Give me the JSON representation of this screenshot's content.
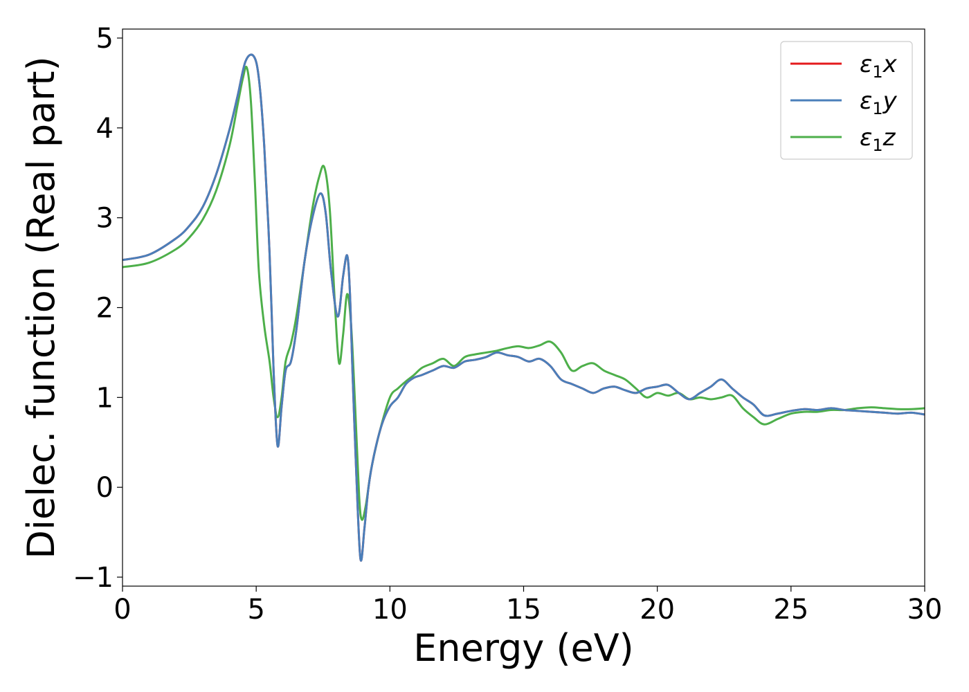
{
  "chart_data": {
    "type": "line",
    "title": "",
    "xlabel": "Energy (eV)",
    "ylabel": "Dielec. function (Real part)",
    "xlim": [
      0,
      30
    ],
    "ylim": [
      -1.1,
      5.1
    ],
    "xticks": [
      0,
      5,
      10,
      15,
      20,
      25,
      30
    ],
    "yticks": [
      -1,
      0,
      1,
      2,
      3,
      4,
      5
    ],
    "grid": false,
    "legend_position": "top-right",
    "series": [
      {
        "name": "ε₁x",
        "name_base": "ε",
        "name_sub": "1",
        "name_suffix": "x",
        "color": "#e41a1c",
        "x": [
          0,
          1,
          2,
          2.5,
          3,
          3.5,
          4,
          4.3,
          4.6,
          4.9,
          5.1,
          5.3,
          5.5,
          5.65,
          5.8,
          5.95,
          6.1,
          6.3,
          6.5,
          6.8,
          7.1,
          7.4,
          7.6,
          7.8,
          8.05,
          8.25,
          8.4,
          8.5,
          8.6,
          8.75,
          8.9,
          9.05,
          9.2,
          9.4,
          9.7,
          10,
          10.3,
          10.6,
          10.9,
          11.2,
          11.6,
          12,
          12.4,
          12.8,
          13.2,
          13.6,
          14,
          14.4,
          14.8,
          15.2,
          15.6,
          16,
          16.4,
          16.8,
          17.2,
          17.6,
          18,
          18.4,
          18.8,
          19.2,
          19.6,
          20,
          20.4,
          20.8,
          21.2,
          21.6,
          22,
          22.4,
          22.8,
          23.2,
          23.6,
          24,
          24.5,
          25,
          25.5,
          26,
          26.5,
          27,
          27.5,
          28,
          28.5,
          29,
          29.5,
          30
        ],
        "y": [
          2.53,
          2.59,
          2.77,
          2.91,
          3.12,
          3.48,
          3.98,
          4.35,
          4.74,
          4.8,
          4.55,
          3.8,
          2.6,
          1.3,
          0.46,
          0.9,
          1.3,
          1.4,
          1.75,
          2.5,
          3.0,
          3.27,
          3.05,
          2.4,
          1.9,
          2.35,
          2.58,
          2.2,
          1.3,
          0.1,
          -0.8,
          -0.45,
          0.0,
          0.35,
          0.7,
          0.9,
          1.0,
          1.15,
          1.22,
          1.25,
          1.3,
          1.35,
          1.33,
          1.4,
          1.42,
          1.45,
          1.5,
          1.47,
          1.45,
          1.4,
          1.43,
          1.35,
          1.2,
          1.15,
          1.1,
          1.05,
          1.1,
          1.12,
          1.08,
          1.05,
          1.1,
          1.12,
          1.14,
          1.05,
          0.98,
          1.05,
          1.12,
          1.2,
          1.1,
          1.0,
          0.92,
          0.8,
          0.82,
          0.85,
          0.87,
          0.86,
          0.88,
          0.86,
          0.85,
          0.84,
          0.83,
          0.82,
          0.83,
          0.81
        ]
      },
      {
        "name": "ε₁y",
        "name_base": "ε",
        "name_sub": "1",
        "name_suffix": "y",
        "color": "#4a7fba",
        "x": [
          0,
          1,
          2,
          2.5,
          3,
          3.5,
          4,
          4.3,
          4.6,
          4.9,
          5.1,
          5.3,
          5.5,
          5.65,
          5.8,
          5.95,
          6.1,
          6.3,
          6.5,
          6.8,
          7.1,
          7.4,
          7.6,
          7.8,
          8.05,
          8.25,
          8.4,
          8.5,
          8.6,
          8.75,
          8.9,
          9.05,
          9.2,
          9.4,
          9.7,
          10,
          10.3,
          10.6,
          10.9,
          11.2,
          11.6,
          12,
          12.4,
          12.8,
          13.2,
          13.6,
          14,
          14.4,
          14.8,
          15.2,
          15.6,
          16,
          16.4,
          16.8,
          17.2,
          17.6,
          18,
          18.4,
          18.8,
          19.2,
          19.6,
          20,
          20.4,
          20.8,
          21.2,
          21.6,
          22,
          22.4,
          22.8,
          23.2,
          23.6,
          24,
          24.5,
          25,
          25.5,
          26,
          26.5,
          27,
          27.5,
          28,
          28.5,
          29,
          29.5,
          30
        ],
        "y": [
          2.53,
          2.59,
          2.77,
          2.91,
          3.12,
          3.48,
          3.98,
          4.35,
          4.74,
          4.8,
          4.55,
          3.8,
          2.6,
          1.3,
          0.46,
          0.9,
          1.3,
          1.4,
          1.75,
          2.5,
          3.0,
          3.27,
          3.05,
          2.4,
          1.9,
          2.35,
          2.58,
          2.2,
          1.3,
          0.1,
          -0.8,
          -0.45,
          0.0,
          0.35,
          0.7,
          0.9,
          1.0,
          1.15,
          1.22,
          1.25,
          1.3,
          1.35,
          1.33,
          1.4,
          1.42,
          1.45,
          1.5,
          1.47,
          1.45,
          1.4,
          1.43,
          1.35,
          1.2,
          1.15,
          1.1,
          1.05,
          1.1,
          1.12,
          1.08,
          1.05,
          1.1,
          1.12,
          1.14,
          1.05,
          0.98,
          1.05,
          1.12,
          1.2,
          1.1,
          1.0,
          0.92,
          0.8,
          0.82,
          0.85,
          0.87,
          0.86,
          0.88,
          0.86,
          0.85,
          0.84,
          0.83,
          0.82,
          0.83,
          0.81
        ]
      },
      {
        "name": "ε₁z",
        "name_base": "ε",
        "name_sub": "1",
        "name_suffix": "z",
        "color": "#4daf4a",
        "x": [
          0,
          1,
          2,
          2.5,
          3,
          3.5,
          4,
          4.3,
          4.5,
          4.65,
          4.8,
          4.95,
          5.1,
          5.3,
          5.5,
          5.65,
          5.8,
          5.95,
          6.1,
          6.3,
          6.5,
          6.8,
          7.1,
          7.35,
          7.55,
          7.75,
          7.95,
          8.1,
          8.25,
          8.4,
          8.55,
          8.7,
          8.85,
          8.95,
          9.1,
          9.3,
          9.6,
          10,
          10.3,
          10.6,
          10.9,
          11.2,
          11.6,
          12,
          12.4,
          12.8,
          13.2,
          13.6,
          14,
          14.4,
          14.8,
          15.2,
          15.6,
          16,
          16.4,
          16.8,
          17.2,
          17.6,
          18,
          18.4,
          18.8,
          19.2,
          19.6,
          20,
          20.4,
          20.8,
          21.2,
          21.6,
          22,
          22.4,
          22.8,
          23.2,
          23.6,
          24,
          24.5,
          25,
          25.5,
          26,
          26.5,
          27,
          27.5,
          28,
          28.5,
          29,
          29.5,
          30
        ],
        "y": [
          2.45,
          2.5,
          2.65,
          2.78,
          2.98,
          3.3,
          3.8,
          4.25,
          4.55,
          4.67,
          4.3,
          3.4,
          2.4,
          1.8,
          1.4,
          1.0,
          0.78,
          1.0,
          1.4,
          1.6,
          1.9,
          2.5,
          3.1,
          3.45,
          3.56,
          3.1,
          2.0,
          1.38,
          1.7,
          2.15,
          1.8,
          0.9,
          -0.1,
          -0.36,
          -0.2,
          0.2,
          0.6,
          1.0,
          1.1,
          1.18,
          1.25,
          1.33,
          1.38,
          1.43,
          1.35,
          1.45,
          1.48,
          1.5,
          1.52,
          1.55,
          1.57,
          1.55,
          1.58,
          1.62,
          1.5,
          1.3,
          1.35,
          1.38,
          1.3,
          1.25,
          1.2,
          1.1,
          1.0,
          1.05,
          1.02,
          1.05,
          0.98,
          1.0,
          0.98,
          1.0,
          1.02,
          0.88,
          0.78,
          0.7,
          0.76,
          0.82,
          0.84,
          0.84,
          0.86,
          0.86,
          0.88,
          0.89,
          0.88,
          0.87,
          0.87,
          0.88
        ]
      }
    ]
  }
}
